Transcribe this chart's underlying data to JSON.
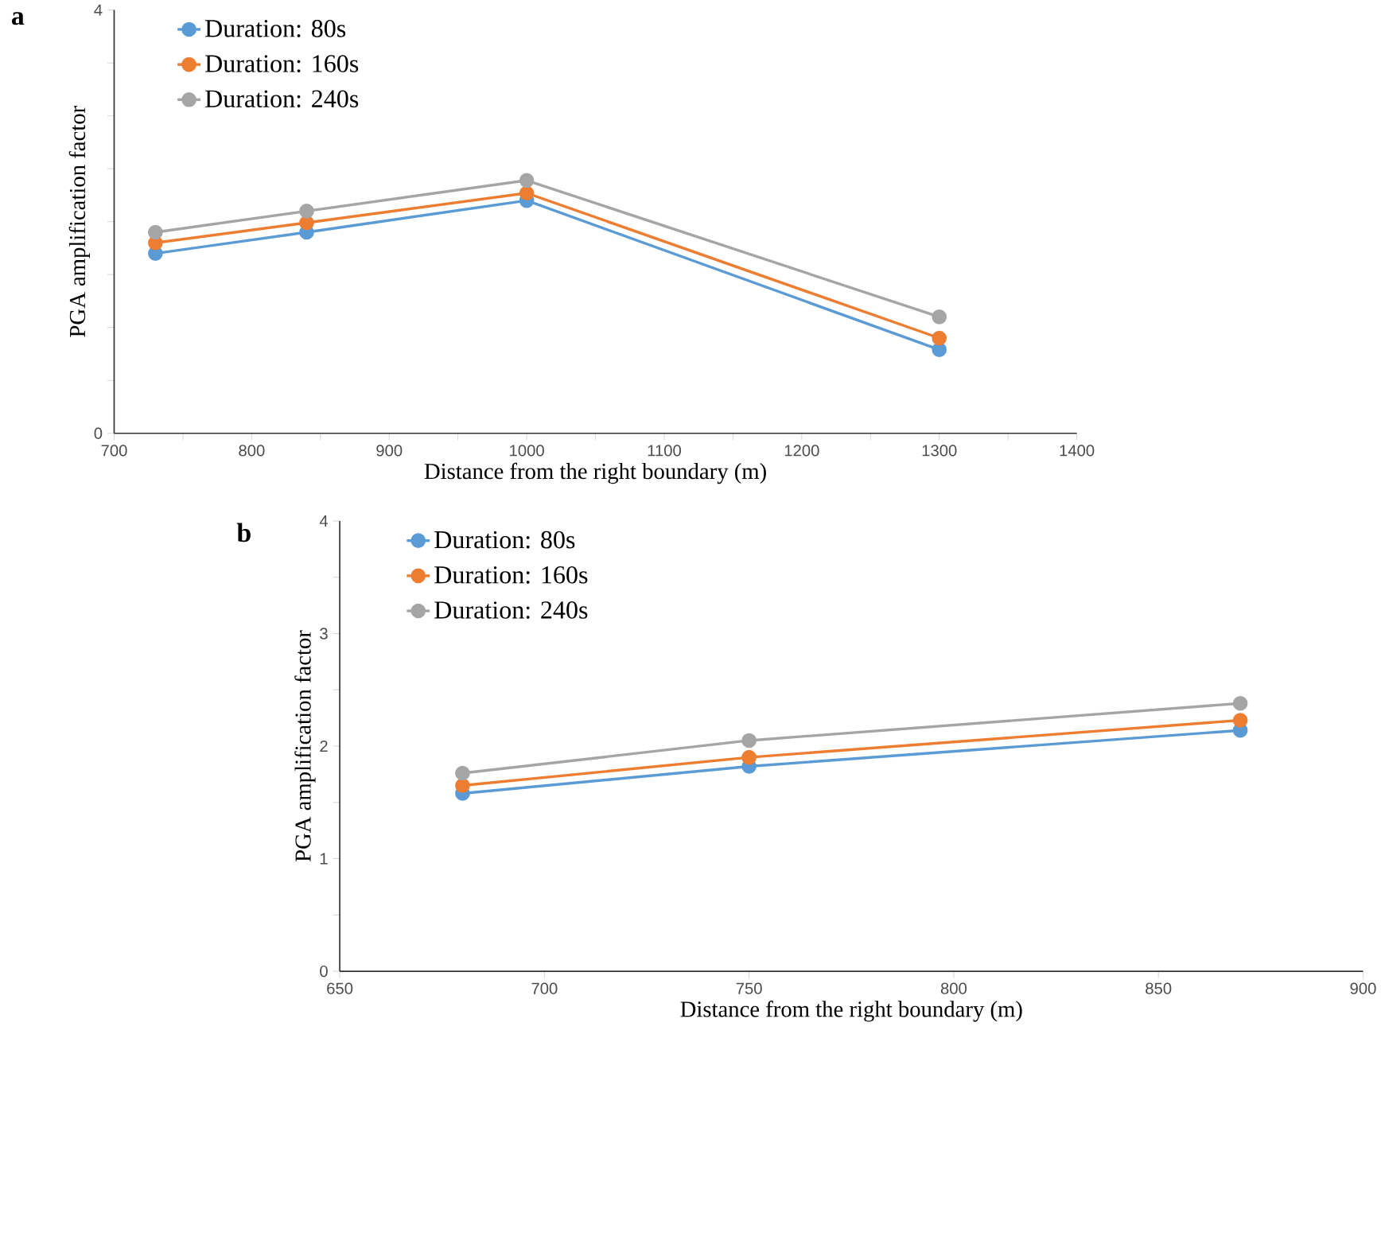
{
  "chart_data": [
    {
      "type": "line",
      "title": "a",
      "xlabel": "Distance from the right boundary (m)",
      "ylabel": "PGA amplification factor",
      "x": [
        730,
        840,
        1000,
        1300
      ],
      "series": [
        {
          "name": "Duration: 80s",
          "color": "#5b9bd5",
          "values": [
            1.7,
            1.9,
            2.2,
            0.79
          ]
        },
        {
          "name": "Duration: 160s",
          "color": "#ed7d31",
          "values": [
            1.8,
            1.99,
            2.27,
            0.9
          ]
        },
        {
          "name": "Duration: 240s",
          "color": "#a5a5a5",
          "values": [
            1.9,
            2.1,
            2.39,
            1.1
          ]
        }
      ],
      "xlim": [
        700,
        1400
      ],
      "xticks": [
        700,
        {
          "value": 750,
          "label": null
        },
        800,
        {
          "value": 850,
          "label": null
        },
        900,
        {
          "value": 950,
          "label": null
        },
        1000,
        {
          "value": 1050,
          "label": null
        },
        1100,
        {
          "value": 1150,
          "label": null
        },
        1200,
        {
          "value": 1250,
          "label": null
        },
        1300,
        {
          "value": 1350,
          "label": null
        },
        1400
      ],
      "ylim": [
        0,
        4
      ],
      "yticks": [
        0,
        {
          "value": 0.5,
          "label": null
        },
        {
          "value": 1,
          "label": null
        },
        {
          "value": 1.5,
          "label": null
        },
        {
          "value": 2,
          "label": null
        },
        {
          "value": 2.5,
          "label": null
        },
        {
          "value": 3,
          "label": null
        },
        {
          "value": 3.5,
          "label": null
        },
        4
      ],
      "legend": "top left",
      "marker": "circle",
      "line_style": "solid"
    },
    {
      "type": "line",
      "title": "b",
      "xlabel": "Distance from the right boundary (m)",
      "ylabel": "PGA amplification factor",
      "x": [
        680,
        750,
        870
      ],
      "series": [
        {
          "name": "Duration: 80s",
          "color": "#5b9bd5",
          "values": [
            1.58,
            1.82,
            2.14
          ]
        },
        {
          "name": "Duration: 160s",
          "color": "#ed7d31",
          "values": [
            1.65,
            1.9,
            2.23
          ]
        },
        {
          "name": "Duration: 240s",
          "color": "#a5a5a5",
          "values": [
            1.76,
            2.05,
            2.38
          ]
        }
      ],
      "xlim": [
        650,
        900
      ],
      "xticks": [
        650,
        700,
        750,
        800,
        850,
        900
      ],
      "ylim": [
        0,
        4
      ],
      "yticks": [
        0,
        {
          "value": 0.5,
          "label": null
        },
        1,
        {
          "value": 1.5,
          "label": null
        },
        2,
        {
          "value": 2.5,
          "label": null
        },
        3,
        {
          "value": 3.5,
          "label": null
        },
        4
      ],
      "legend": "top left",
      "marker": "circle",
      "line_style": "solid"
    }
  ]
}
